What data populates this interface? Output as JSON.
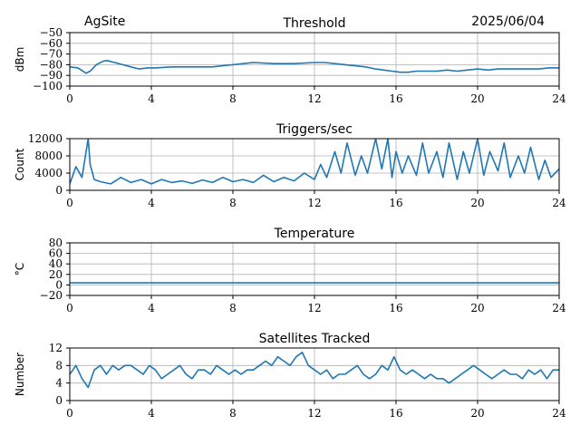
{
  "header": {
    "site": "AgSite",
    "date": "2025/06/04"
  },
  "colors": {
    "series": "#1f77b4",
    "grid": "#b0b0b0",
    "axis": "#000000"
  },
  "chart_data": [
    {
      "type": "line",
      "title": "Threshold",
      "xlabel": "",
      "ylabel": "dBm",
      "xlim": [
        0,
        24
      ],
      "ylim": [
        -100,
        -50
      ],
      "xticks": [
        0,
        4,
        8,
        12,
        16,
        20,
        24
      ],
      "yticks": [
        -100,
        -90,
        -80,
        -70,
        -60,
        -50
      ],
      "ytick_labels": [
        "−100",
        "−90",
        "−80",
        "−70",
        "−60",
        "−50"
      ],
      "grid": true,
      "series": [
        {
          "x": [
            0,
            0.4,
            0.8,
            1.0,
            1.3,
            1.6,
            1.8,
            2.2,
            2.6,
            3.0,
            3.4,
            3.8,
            4.2,
            5.0,
            6.0,
            7.0,
            7.5,
            8.0,
            8.5,
            9.0,
            10.0,
            11.0,
            12.0,
            12.5,
            13.0,
            13.5,
            14.0,
            14.5,
            15.0,
            15.4,
            15.8,
            16.2,
            16.6,
            17.0,
            17.5,
            18.0,
            18.5,
            19.0,
            19.5,
            20.0,
            20.5,
            21.0,
            21.5,
            22.0,
            22.5,
            23.0,
            23.5,
            24.0
          ],
          "values": [
            -82,
            -83,
            -88,
            -86,
            -80,
            -77,
            -76,
            -78,
            -80,
            -82,
            -84,
            -83,
            -83,
            -82,
            -82,
            -82,
            -81,
            -80,
            -79,
            -78,
            -79,
            -79,
            -78,
            -78,
            -79,
            -80,
            -81,
            -82,
            -84,
            -85,
            -86,
            -87,
            -87,
            -86,
            -86,
            -86,
            -85,
            -86,
            -85,
            -84,
            -85,
            -84,
            -84,
            -84,
            -84,
            -84,
            -83,
            -83
          ]
        }
      ]
    },
    {
      "type": "line",
      "title": "Triggers/sec",
      "xlabel": "",
      "ylabel": "Count",
      "xlim": [
        0,
        24
      ],
      "ylim": [
        0,
        12000
      ],
      "xticks": [
        0,
        4,
        8,
        12,
        16,
        20,
        24
      ],
      "yticks": [
        0,
        4000,
        8000,
        12000
      ],
      "grid": true,
      "series": [
        {
          "x": [
            0,
            0.3,
            0.6,
            0.8,
            0.9,
            1.0,
            1.2,
            1.5,
            2.0,
            2.5,
            3.0,
            3.5,
            4.0,
            4.5,
            5.0,
            5.5,
            6.0,
            6.5,
            7.0,
            7.5,
            8.0,
            8.5,
            9.0,
            9.5,
            10.0,
            10.5,
            11.0,
            11.5,
            12.0,
            12.3,
            12.6,
            13.0,
            13.3,
            13.6,
            14.0,
            14.3,
            14.6,
            15.0,
            15.3,
            15.6,
            15.8,
            16.0,
            16.3,
            16.6,
            17.0,
            17.3,
            17.6,
            18.0,
            18.3,
            18.6,
            19.0,
            19.3,
            19.6,
            20.0,
            20.3,
            20.6,
            21.0,
            21.3,
            21.6,
            22.0,
            22.3,
            22.6,
            23.0,
            23.3,
            23.6,
            24.0
          ],
          "values": [
            1500,
            5500,
            3000,
            9000,
            12000,
            6000,
            2500,
            2000,
            1500,
            3000,
            1800,
            2500,
            1500,
            2500,
            1800,
            2200,
            1600,
            2400,
            1800,
            3000,
            2000,
            2500,
            1800,
            3500,
            2000,
            3000,
            2200,
            4000,
            2500,
            6000,
            3000,
            9000,
            4000,
            11000,
            3500,
            8000,
            4000,
            12000,
            5000,
            12000,
            3000,
            9000,
            4000,
            8000,
            3500,
            11000,
            4000,
            9000,
            3000,
            11000,
            2500,
            9000,
            4000,
            12000,
            3500,
            9000,
            4500,
            11000,
            3000,
            8000,
            4000,
            10000,
            2500,
            7000,
            3000,
            5000
          ]
        }
      ]
    },
    {
      "type": "line",
      "title": "Temperature",
      "xlabel": "",
      "ylabel": "°C",
      "xlim": [
        0,
        24
      ],
      "ylim": [
        -20,
        80
      ],
      "xticks": [
        0,
        4,
        8,
        12,
        16,
        20,
        24
      ],
      "yticks": [
        -20,
        0,
        20,
        40,
        60,
        80
      ],
      "ytick_labels": [
        "−20",
        "0",
        "20",
        "40",
        "60",
        "80"
      ],
      "grid": true,
      "series": [
        {
          "x": [
            0,
            4,
            8,
            12,
            16,
            20,
            24
          ],
          "values": [
            4,
            4,
            4,
            4,
            4,
            4,
            4
          ]
        }
      ]
    },
    {
      "type": "line",
      "title": "Satellites Tracked",
      "xlabel": "",
      "ylabel": "Number",
      "xlim": [
        0,
        24
      ],
      "ylim": [
        0,
        12
      ],
      "xticks": [
        0,
        4,
        8,
        12,
        16,
        20,
        24
      ],
      "yticks": [
        0,
        4,
        8,
        12
      ],
      "grid": true,
      "series": [
        {
          "x": [
            0,
            0.3,
            0.6,
            0.9,
            1.2,
            1.5,
            1.8,
            2.1,
            2.4,
            2.7,
            3.0,
            3.3,
            3.6,
            3.9,
            4.2,
            4.5,
            4.8,
            5.1,
            5.4,
            5.7,
            6.0,
            6.3,
            6.6,
            6.9,
            7.2,
            7.5,
            7.8,
            8.1,
            8.4,
            8.7,
            9.0,
            9.3,
            9.6,
            9.9,
            10.2,
            10.5,
            10.8,
            11.1,
            11.4,
            11.7,
            12.0,
            12.3,
            12.6,
            12.9,
            13.2,
            13.5,
            13.8,
            14.1,
            14.4,
            14.7,
            15.0,
            15.3,
            15.6,
            15.9,
            16.2,
            16.5,
            16.8,
            17.1,
            17.4,
            17.7,
            18.0,
            18.3,
            18.6,
            18.9,
            19.2,
            19.5,
            19.8,
            20.1,
            20.4,
            20.7,
            21.0,
            21.3,
            21.6,
            21.9,
            22.2,
            22.5,
            22.8,
            23.1,
            23.4,
            23.7,
            24.0
          ],
          "values": [
            6,
            8,
            5,
            3,
            7,
            8,
            6,
            8,
            7,
            8,
            8,
            7,
            6,
            8,
            7,
            5,
            6,
            7,
            8,
            6,
            5,
            7,
            7,
            6,
            8,
            7,
            6,
            7,
            6,
            7,
            7,
            8,
            9,
            8,
            10,
            9,
            8,
            10,
            11,
            8,
            7,
            6,
            7,
            5,
            6,
            6,
            7,
            8,
            6,
            5,
            6,
            8,
            7,
            10,
            7,
            6,
            7,
            6,
            5,
            6,
            5,
            5,
            4,
            5,
            6,
            7,
            8,
            7,
            6,
            5,
            6,
            7,
            6,
            6,
            5,
            7,
            6,
            7,
            5,
            7,
            7
          ]
        }
      ]
    }
  ]
}
